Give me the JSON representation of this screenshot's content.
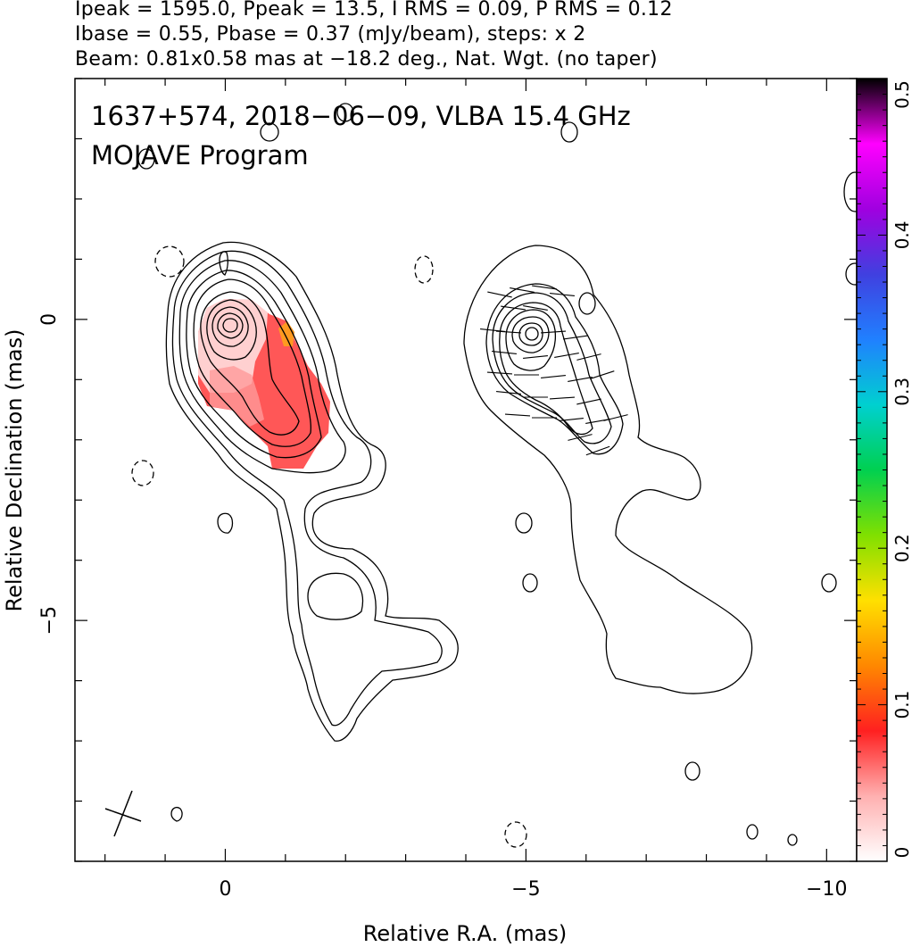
{
  "header": {
    "line1": "Ipeak = 1595.0, Ppeak = 13.5, I RMS = 0.09, P RMS = 0.12",
    "line2": "Ibase = 0.55, Pbase = 0.37 (mJy/beam), steps: x 2",
    "line3": "Beam: 0.81x0.58 mas at −18.2 deg., Nat. Wgt. (no taper)"
  },
  "plot": {
    "title_line1": "1637+574, 2018−06−09, VLBA 15.4 GHz",
    "title_line2": "MOJAVE Program"
  },
  "colors": {
    "contour": "#000000",
    "polarization_fill": "#ff2a2a",
    "polarization_edge": "#ff8a00"
  },
  "chart_data": {
    "type": "contour map",
    "xlabel": "Relative R.A. (mas)",
    "ylabel": "Relative Declination (mas)",
    "xlim": [
      2.5,
      -10.5
    ],
    "ylim": [
      -9,
      4
    ],
    "x_ticks": [
      {
        "value": 0,
        "label": "0"
      },
      {
        "value": -5,
        "label": "−5"
      },
      {
        "value": -10,
        "label": "−10"
      }
    ],
    "y_ticks": [
      {
        "value": 0,
        "label": "0"
      },
      {
        "value": -5,
        "label": "−5"
      }
    ],
    "colorbar": {
      "range": [
        0,
        0.5
      ],
      "ticks": [
        {
          "value": 0,
          "label": "0"
        },
        {
          "value": 0.1,
          "label": "0.1"
        },
        {
          "value": 0.2,
          "label": "0.2"
        },
        {
          "value": 0.3,
          "label": "0.3"
        },
        {
          "value": 0.4,
          "label": "0.4"
        },
        {
          "value": 0.5,
          "label": "0.5"
        }
      ],
      "scale": [
        "#ffffff",
        "#ffb0b0",
        "#ff2020",
        "#ff8800",
        "#ffe000",
        "#80e000",
        "#00d050",
        "#00d0d0",
        "#2080ff",
        "#4040e0",
        "#a000e0",
        "#ff00ff",
        "#000000"
      ]
    },
    "peak_position": [
      0,
      0
    ],
    "beam": {
      "major_mas": 0.81,
      "minor_mas": 0.58,
      "pa_deg": -18.2
    }
  }
}
